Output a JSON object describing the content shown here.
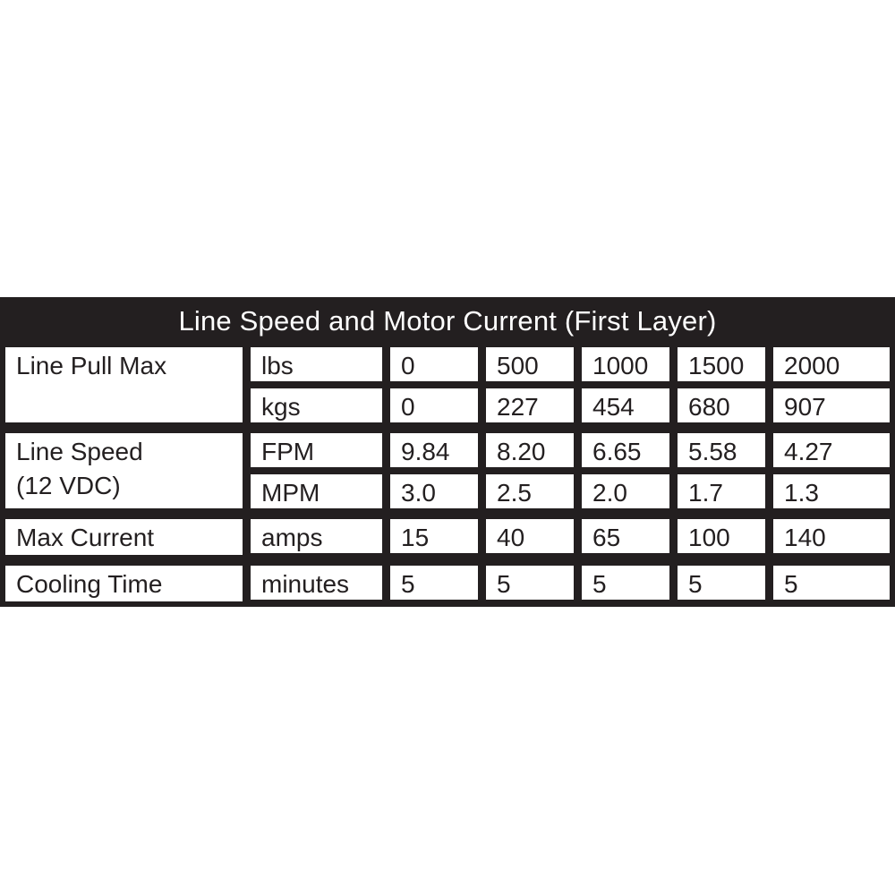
{
  "title": "Line Speed and Motor Current (First Layer)",
  "colors": {
    "frame_and_title_bg": "#231f20",
    "title_text": "#ffffff",
    "cell_bg": "#ffffff",
    "cell_text": "#231f20"
  },
  "table": {
    "groups": [
      {
        "label": "Line Pull Max",
        "rows": [
          {
            "unit": "lbs",
            "values": [
              "0",
              "500",
              "1000",
              "1500",
              "2000"
            ]
          },
          {
            "unit": "kgs",
            "values": [
              "0",
              "227",
              "454",
              "680",
              "907"
            ]
          }
        ]
      },
      {
        "label": "Line Speed\n(12 VDC)",
        "rows": [
          {
            "unit": "FPM",
            "values": [
              "9.84",
              "8.20",
              "6.65",
              "5.58",
              "4.27"
            ]
          },
          {
            "unit": "MPM",
            "values": [
              "3.0",
              "2.5",
              "2.0",
              "1.7",
              "1.3"
            ]
          }
        ]
      },
      {
        "label": "Max Current",
        "rows": [
          {
            "unit": "amps",
            "values": [
              "15",
              "40",
              "65",
              "100",
              "140"
            ]
          }
        ]
      },
      {
        "label": "Cooling Time",
        "rows": [
          {
            "unit": "minutes",
            "values": [
              "5",
              "5",
              "5",
              "5",
              "5"
            ]
          }
        ]
      }
    ]
  },
  "chart_data": {
    "type": "table",
    "title": "Line Speed and Motor Current (First Layer)",
    "rows": [
      {
        "parameter": "Line Pull Max",
        "unit": "lbs",
        "values": [
          "0",
          "500",
          "1000",
          "1500",
          "2000"
        ]
      },
      {
        "parameter": "Line Pull Max",
        "unit": "kgs",
        "values": [
          "0",
          "227",
          "454",
          "680",
          "907"
        ]
      },
      {
        "parameter": "Line Speed (12 VDC)",
        "unit": "FPM",
        "values": [
          "9.84",
          "8.20",
          "6.65",
          "5.58",
          "4.27"
        ]
      },
      {
        "parameter": "Line Speed (12 VDC)",
        "unit": "MPM",
        "values": [
          "3.0",
          "2.5",
          "2.0",
          "1.7",
          "1.3"
        ]
      },
      {
        "parameter": "Max Current",
        "unit": "amps",
        "values": [
          "15",
          "40",
          "65",
          "100",
          "140"
        ]
      },
      {
        "parameter": "Cooling Time",
        "unit": "minutes",
        "values": [
          "5",
          "5",
          "5",
          "5",
          "5"
        ]
      }
    ]
  }
}
